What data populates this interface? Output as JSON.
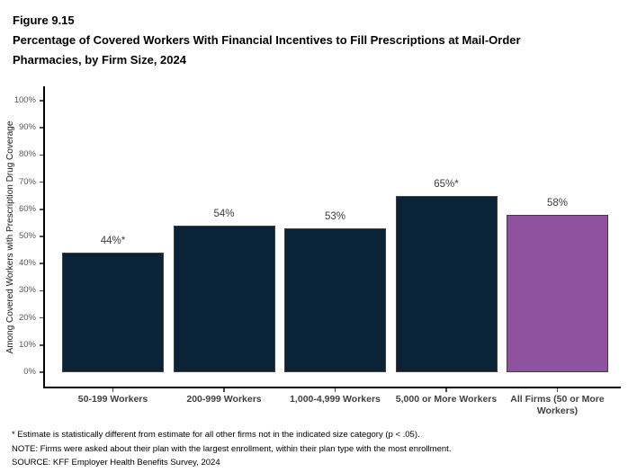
{
  "header": {
    "figure_number": "Figure 9.15",
    "title": "Percentage of Covered Workers With Financial Incentives to Fill Prescriptions at Mail-Order Pharmacies, by Firm Size, 2024"
  },
  "chart_data": {
    "type": "bar",
    "title": "Percentage of Covered Workers With Financial Incentives to Fill Prescriptions at Mail-Order Pharmacies, by Firm Size, 2024",
    "xlabel": "",
    "ylabel": "Among Covered Workers with Prescription Drug Coverage",
    "ylim": [
      0,
      100
    ],
    "ytick_step": 10,
    "ytick_suffix": "%",
    "grid": false,
    "legend": "none",
    "categories": [
      "50-199 Workers",
      "200-999 Workers",
      "1,000-4,999 Workers",
      "5,000 or More Workers",
      "All Firms (50 or More Workers)"
    ],
    "values": [
      44,
      54,
      53,
      65,
      58
    ],
    "value_labels": [
      "44%*",
      "54%",
      "53%",
      "65%*",
      "58%"
    ],
    "bar_colors": [
      "#0b2337",
      "#0b2337",
      "#0b2337",
      "#0b2337",
      "#8f529f"
    ],
    "bar_border_color": "#3f3f3f",
    "axis_color": "#000000"
  },
  "footnotes": [
    "* Estimate is statistically different from estimate for all other firms not in the indicated size category (p < .05).",
    "NOTE: Firms were asked about their plan with the largest enrollment, within their plan type with the most enrollment.",
    "SOURCE: KFF Employer Health Benefits Survey, 2024"
  ]
}
